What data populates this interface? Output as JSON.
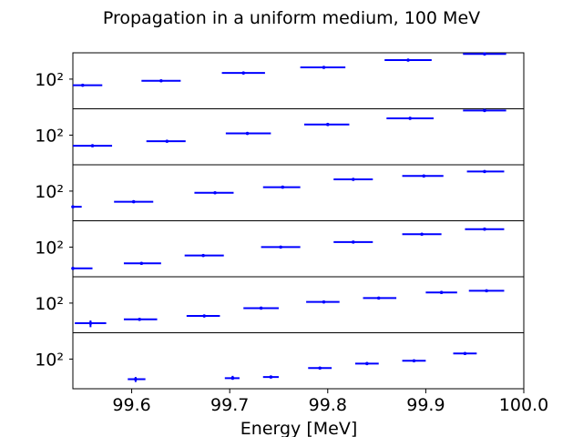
{
  "chart_data": {
    "type": "scatter",
    "title": "Propagation in a uniform medium, 100 MeV",
    "xlabel": "Energy [MeV]",
    "xlim": [
      99.54,
      100.0
    ],
    "x_ticks": [
      "99.6",
      "99.7",
      "99.8",
      "99.9",
      "100.0"
    ],
    "y_tick_label": "10²",
    "ylog": true,
    "grid": false,
    "color": "#0000ff",
    "panels": [
      {
        "points": [
          {
            "x": 99.55,
            "xerr_low": 99.54,
            "xerr_high": 99.57,
            "y": 0.42
          },
          {
            "x": 99.63,
            "xerr_low": 99.61,
            "xerr_high": 99.65,
            "y": 0.5
          },
          {
            "x": 99.714,
            "xerr_low": 99.692,
            "xerr_high": 99.736,
            "y": 0.64
          },
          {
            "x": 99.796,
            "xerr_low": 99.772,
            "xerr_high": 99.818,
            "y": 0.74
          },
          {
            "x": 99.882,
            "xerr_low": 99.858,
            "xerr_high": 99.906,
            "y": 0.87
          },
          {
            "x": 99.96,
            "xerr_low": 99.938,
            "xerr_high": 99.982,
            "y": 0.98
          }
        ]
      },
      {
        "points": [
          {
            "x": 99.56,
            "xerr_low": 99.54,
            "xerr_high": 99.58,
            "y": 0.34
          },
          {
            "x": 99.636,
            "xerr_low": 99.615,
            "xerr_high": 99.655,
            "y": 0.42
          },
          {
            "x": 99.718,
            "xerr_low": 99.696,
            "xerr_high": 99.742,
            "y": 0.56
          },
          {
            "x": 99.8,
            "xerr_low": 99.776,
            "xerr_high": 99.822,
            "y": 0.72
          },
          {
            "x": 99.884,
            "xerr_low": 99.86,
            "xerr_high": 99.908,
            "y": 0.83
          },
          {
            "x": 99.96,
            "xerr_low": 99.938,
            "xerr_high": 99.982,
            "y": 0.97
          }
        ]
      },
      {
        "points": [
          {
            "x": 99.54,
            "xerr_low": 99.54,
            "xerr_high": 99.549,
            "y": 0.25
          },
          {
            "x": 99.602,
            "xerr_low": 99.582,
            "xerr_high": 99.622,
            "y": 0.34
          },
          {
            "x": 99.685,
            "xerr_low": 99.664,
            "xerr_high": 99.704,
            "y": 0.5
          },
          {
            "x": 99.754,
            "xerr_low": 99.734,
            "xerr_high": 99.772,
            "y": 0.6
          },
          {
            "x": 99.826,
            "xerr_low": 99.806,
            "xerr_high": 99.846,
            "y": 0.74
          },
          {
            "x": 99.898,
            "xerr_low": 99.876,
            "xerr_high": 99.918,
            "y": 0.8
          },
          {
            "x": 99.96,
            "xerr_low": 99.942,
            "xerr_high": 99.98,
            "y": 0.88
          }
        ]
      },
      {
        "points": [
          {
            "x": 99.54,
            "xerr_low": 99.54,
            "xerr_high": 99.56,
            "y": 0.15
          },
          {
            "x": 99.61,
            "xerr_low": 99.592,
            "xerr_high": 99.63,
            "y": 0.24
          },
          {
            "x": 99.673,
            "xerr_low": 99.654,
            "xerr_high": 99.694,
            "y": 0.38
          },
          {
            "x": 99.752,
            "xerr_low": 99.732,
            "xerr_high": 99.772,
            "y": 0.53
          },
          {
            "x": 99.826,
            "xerr_low": 99.806,
            "xerr_high": 99.846,
            "y": 0.62
          },
          {
            "x": 99.896,
            "xerr_low": 99.876,
            "xerr_high": 99.916,
            "y": 0.76
          },
          {
            "x": 99.96,
            "xerr_low": 99.94,
            "xerr_high": 99.98,
            "y": 0.85
          }
        ]
      },
      {
        "points": [
          {
            "x": 99.558,
            "xerr_low": 99.542,
            "xerr_high": 99.574,
            "y": 0.17
          },
          {
            "x": 99.608,
            "xerr_low": 99.592,
            "xerr_high": 99.626,
            "y": 0.24
          },
          {
            "x": 99.674,
            "xerr_low": 99.656,
            "xerr_high": 99.69,
            "y": 0.3
          },
          {
            "x": 99.732,
            "xerr_low": 99.714,
            "xerr_high": 99.75,
            "y": 0.44
          },
          {
            "x": 99.796,
            "xerr_low": 99.778,
            "xerr_high": 99.812,
            "y": 0.55
          },
          {
            "x": 99.852,
            "xerr_low": 99.836,
            "xerr_high": 99.87,
            "y": 0.62
          },
          {
            "x": 99.916,
            "xerr_low": 99.9,
            "xerr_high": 99.932,
            "y": 0.72
          },
          {
            "x": 99.962,
            "xerr_low": 99.944,
            "xerr_high": 99.98,
            "y": 0.75
          }
        ]
      },
      {
        "points": [
          {
            "x": 99.604,
            "xerr_low": 99.596,
            "xerr_high": 99.614,
            "y": 0.17
          },
          {
            "x": 99.703,
            "xerr_low": 99.695,
            "xerr_high": 99.71,
            "y": 0.19
          },
          {
            "x": 99.742,
            "xerr_low": 99.734,
            "xerr_high": 99.75,
            "y": 0.21
          },
          {
            "x": 99.792,
            "xerr_low": 99.78,
            "xerr_high": 99.804,
            "y": 0.37
          },
          {
            "x": 99.84,
            "xerr_low": 99.828,
            "xerr_high": 99.852,
            "y": 0.45
          },
          {
            "x": 99.888,
            "xerr_low": 99.876,
            "xerr_high": 99.9,
            "y": 0.5
          },
          {
            "x": 99.94,
            "xerr_low": 99.928,
            "xerr_high": 99.952,
            "y": 0.63
          }
        ]
      }
    ],
    "y_errors": [
      {
        "panel": 4,
        "point": 0,
        "low": 0.1,
        "high": 0.22
      },
      {
        "panel": 5,
        "point": 0,
        "low": 0.12,
        "high": 0.21
      },
      {
        "panel": 5,
        "point": 1,
        "low": 0.16,
        "high": 0.23
      }
    ]
  }
}
